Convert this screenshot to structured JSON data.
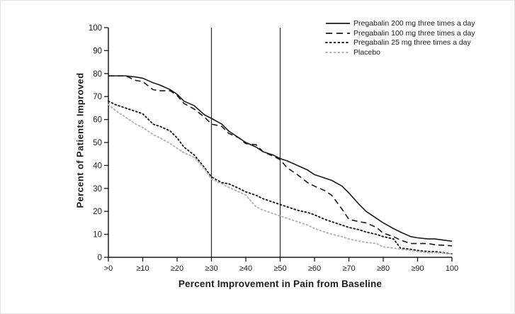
{
  "chart_data": {
    "type": "line",
    "title": "",
    "xlabel": "Percent Improvement in Pain from Baseline",
    "ylabel": "Percent of Patients Improved",
    "xlim": [
      0,
      100
    ],
    "ylim": [
      0,
      100
    ],
    "x_tick_labels": [
      ">0",
      "≥10",
      "≥20",
      "≥30",
      "≥40",
      "≥50",
      "≥60",
      "≥70",
      "≥80",
      "≥90",
      "100"
    ],
    "y_tick_values": [
      0,
      10,
      20,
      30,
      40,
      50,
      60,
      70,
      80,
      90,
      100
    ],
    "grid": false,
    "legend_position": "top-right",
    "reference_lines_x": [
      30,
      50
    ],
    "axis_color": "#1a1a1a",
    "reference_line_color": "#2a2a2a",
    "x": [
      0,
      2,
      5,
      8,
      10,
      13,
      15,
      18,
      20,
      22,
      25,
      28,
      30,
      33,
      35,
      38,
      40,
      43,
      45,
      48,
      50,
      52,
      55,
      58,
      60,
      63,
      65,
      68,
      70,
      73,
      75,
      78,
      80,
      83,
      85,
      88,
      90,
      93,
      95,
      100
    ],
    "series": [
      {
        "name": "Pregabalin 200 mg three times a day",
        "style": "solid",
        "color": "#1a1a1a",
        "values": [
          79,
          79,
          79,
          78.5,
          78,
          76,
          75,
          73,
          71,
          68,
          66,
          62,
          60.5,
          58,
          55,
          52,
          50,
          48,
          46,
          44.5,
          43,
          42,
          40,
          38,
          36,
          34.5,
          33.5,
          31,
          28,
          23,
          20,
          17,
          15,
          12.5,
          11,
          9,
          8.5,
          8,
          8,
          7
        ]
      },
      {
        "name": "Pregabalin 100 mg three times a day",
        "style": "dashed",
        "color": "#1a1a1a",
        "values": [
          79,
          79,
          79,
          77,
          76.5,
          73,
          72.5,
          72.5,
          70.5,
          67,
          64.5,
          61,
          58,
          57,
          54,
          52,
          49.5,
          49,
          46,
          44,
          42.5,
          39,
          36,
          32.5,
          31,
          29,
          27,
          21,
          16.5,
          15.5,
          15,
          13,
          10.5,
          9,
          7.5,
          6,
          6,
          6,
          5.5,
          5
        ]
      },
      {
        "name": "Pregabalin 25 mg three times a day",
        "style": "dotted",
        "color": "#1a1a1a",
        "values": [
          68,
          66.5,
          65,
          63.5,
          62.5,
          58,
          57,
          55,
          52,
          48,
          44.5,
          39,
          35,
          32.5,
          32,
          30,
          28.5,
          27,
          25.5,
          24,
          23,
          22,
          20.5,
          19.5,
          18.5,
          16.5,
          15.5,
          14,
          13,
          12,
          11,
          10,
          9,
          8,
          4,
          3.5,
          3,
          2.5,
          2.5,
          1.5
        ]
      },
      {
        "name": "Placebo",
        "style": "dotted",
        "color": "#b2b2b2",
        "values": [
          66.5,
          64,
          61,
          58,
          56.5,
          53.5,
          52,
          49.5,
          47.5,
          45.5,
          43.5,
          38.5,
          34,
          32,
          30.5,
          28.5,
          27,
          22,
          20.5,
          19,
          18,
          17,
          15.5,
          14,
          12.5,
          11,
          10,
          9,
          8,
          7,
          6.5,
          6,
          4.5,
          4,
          3.5,
          3,
          2.5,
          2,
          2,
          1.5
        ]
      }
    ]
  }
}
